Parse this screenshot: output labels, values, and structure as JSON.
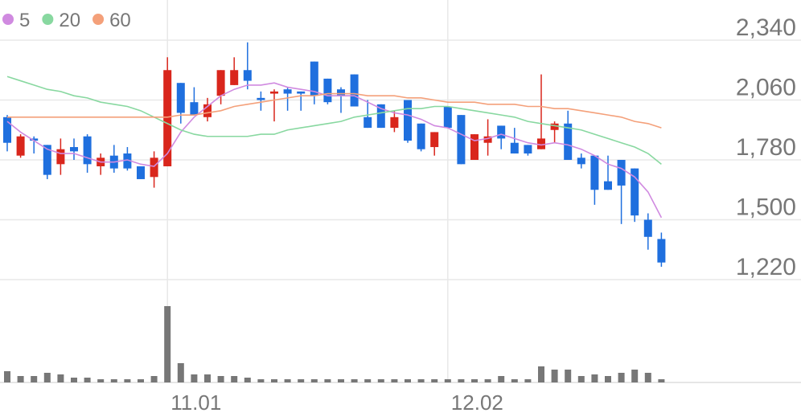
{
  "chart_data": {
    "type": "candlestick",
    "categories": [
      null,
      null,
      null,
      null,
      null,
      null,
      null,
      null,
      null,
      null,
      null,
      null,
      "11.01",
      null,
      null,
      null,
      null,
      null,
      null,
      null,
      null,
      null,
      null,
      null,
      null,
      null,
      null,
      null,
      null,
      null,
      null,
      null,
      null,
      "12.02",
      null,
      null,
      null,
      null,
      null,
      null,
      null,
      null,
      null,
      null,
      null,
      null,
      null,
      null,
      null,
      null
    ],
    "open": [
      1980,
      1800,
      1880,
      1850,
      1760,
      1840,
      1890,
      1750,
      1800,
      1810,
      1750,
      1700,
      1750,
      2140,
      2050,
      1980,
      2080,
      2130,
      2200,
      2070,
      2090,
      2110,
      2100,
      2240,
      2160,
      2110,
      2180,
      1980,
      2040,
      1930,
      2060,
      1950,
      1840,
      2030,
      1990,
      1780,
      1860,
      1940,
      1860,
      1850,
      1830,
      1920,
      1950,
      1790,
      1800,
      1680,
      1780,
      1740,
      1500,
      1410
    ],
    "high": [
      1990,
      1900,
      1890,
      1850,
      1880,
      1880,
      1900,
      1810,
      1850,
      1840,
      1750,
      1820,
      2260,
      2140,
      2120,
      2070,
      2200,
      2260,
      2330,
      2100,
      2110,
      2120,
      2100,
      2240,
      2160,
      2120,
      2180,
      2060,
      2040,
      2010,
      2060,
      1950,
      1910,
      2030,
      1990,
      1900,
      1970,
      1940,
      1930,
      1850,
      2180,
      1960,
      2010,
      1810,
      1800,
      1800,
      1780,
      1740,
      1530,
      1440
    ],
    "low": [
      1820,
      1790,
      1810,
      1690,
      1710,
      1780,
      1720,
      1710,
      1720,
      1730,
      1690,
      1650,
      1750,
      1950,
      1990,
      1960,
      2040,
      2130,
      2110,
      2010,
      1960,
      2010,
      2010,
      2040,
      2040,
      2000,
      2030,
      1930,
      1930,
      1910,
      1860,
      1820,
      1800,
      1930,
      1760,
      1780,
      1800,
      1830,
      1810,
      1800,
      1830,
      1860,
      1780,
      1740,
      1570,
      1640,
      1480,
      1490,
      1360,
      1280
    ],
    "close": [
      1860,
      1890,
      1870,
      1710,
      1830,
      1820,
      1760,
      1790,
      1740,
      1740,
      1690,
      1790,
      2200,
      2000,
      1990,
      2040,
      2200,
      2200,
      2150,
      2060,
      2100,
      2090,
      2090,
      2080,
      2050,
      2080,
      2030,
      1930,
      1930,
      1980,
      1870,
      1830,
      1910,
      1930,
      1760,
      1900,
      1890,
      1880,
      1810,
      1810,
      1880,
      1950,
      1780,
      1760,
      1640,
      1640,
      1660,
      1520,
      1420,
      1300
    ],
    "volume": [
      14,
      8,
      8,
      12,
      10,
      6,
      6,
      4,
      4,
      4,
      4,
      8,
      95,
      24,
      10,
      10,
      8,
      8,
      6,
      4,
      4,
      4,
      4,
      4,
      4,
      4,
      4,
      4,
      4,
      4,
      4,
      4,
      4,
      4,
      4,
      4,
      4,
      8,
      4,
      4,
      20,
      16,
      16,
      8,
      10,
      8,
      12,
      16,
      12,
      4
    ],
    "up_color": "#d9261c",
    "down_color": "#1f6fde",
    "volume_color": "#777777",
    "series": [
      {
        "name": "5",
        "color": "#d08ae0",
        "values": [
          1960,
          1910,
          1870,
          1830,
          1810,
          1810,
          1790,
          1770,
          1770,
          1780,
          1760,
          1750,
          1810,
          1910,
          1980,
          2030,
          2080,
          2110,
          2130,
          2130,
          2140,
          2120,
          2110,
          2100,
          2080,
          2080,
          2080,
          2050,
          2020,
          2000,
          1990,
          1970,
          1940,
          1930,
          1900,
          1870,
          1880,
          1900,
          1880,
          1860,
          1850,
          1860,
          1850,
          1830,
          1800,
          1760,
          1740,
          1700,
          1630,
          1510
        ]
      },
      {
        "name": "20",
        "color": "#88d8a0",
        "values": [
          2170,
          2150,
          2130,
          2110,
          2100,
          2080,
          2070,
          2050,
          2040,
          2030,
          2010,
          1980,
          1950,
          1920,
          1900,
          1890,
          1890,
          1890,
          1890,
          1900,
          1900,
          1920,
          1930,
          1940,
          1950,
          1960,
          1980,
          1990,
          2000,
          2010,
          2020,
          2020,
          2030,
          2030,
          2020,
          2010,
          2000,
          1990,
          1980,
          1960,
          1950,
          1940,
          1930,
          1920,
          1900,
          1880,
          1860,
          1840,
          1810,
          1760
        ]
      },
      {
        "name": "60",
        "color": "#f4a07a",
        "values": [
          1980,
          1980,
          1980,
          1980,
          1980,
          1980,
          1980,
          1980,
          1980,
          1980,
          1980,
          1980,
          1980,
          1990,
          1990,
          2000,
          2010,
          2030,
          2040,
          2050,
          2060,
          2070,
          2080,
          2080,
          2090,
          2090,
          2090,
          2080,
          2080,
          2080,
          2070,
          2070,
          2060,
          2050,
          2050,
          2050,
          2040,
          2040,
          2040,
          2030,
          2030,
          2020,
          2020,
          2010,
          2000,
          1990,
          1980,
          1960,
          1950,
          1930
        ]
      }
    ],
    "ylim": [
      1220,
      2528
    ],
    "yticks": [
      {
        "value": 2340,
        "label": "2,340"
      },
      {
        "value": 2060,
        "label": "2,060"
      },
      {
        "value": 1780,
        "label": "1,780"
      },
      {
        "value": 1500,
        "label": "1,500"
      },
      {
        "value": 1220,
        "label": "1,220"
      }
    ],
    "volume_ylim": [
      0,
      128
    ],
    "grid": true
  }
}
